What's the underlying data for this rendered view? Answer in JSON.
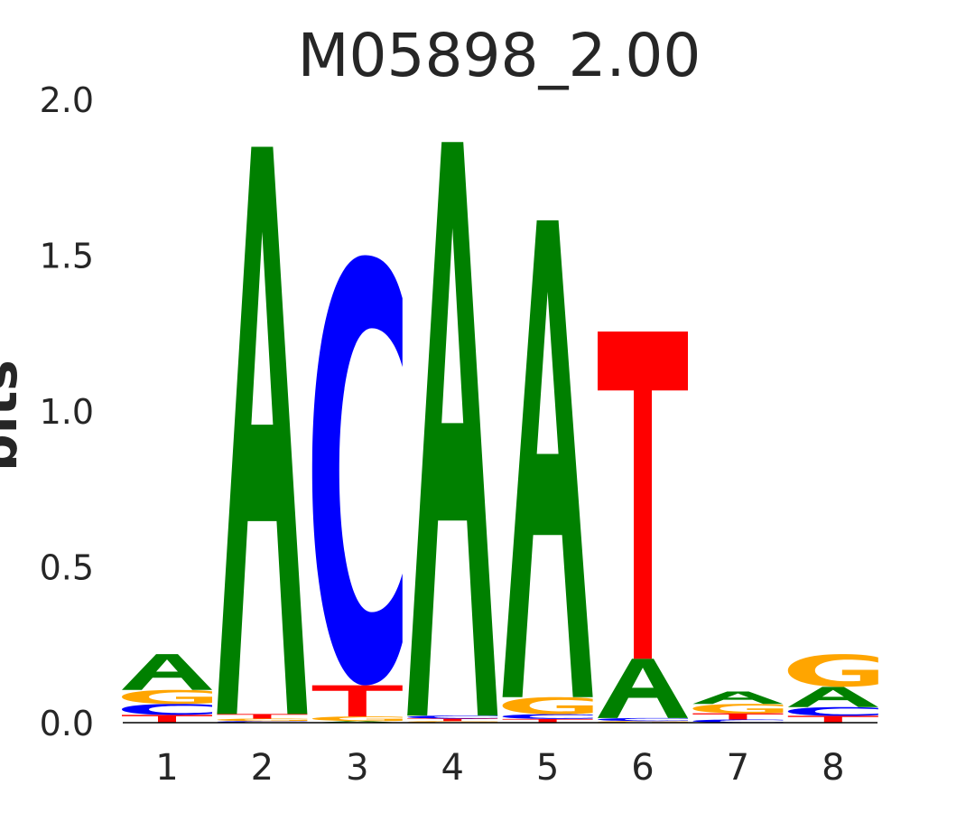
{
  "chart_data": {
    "type": "sequence-logo",
    "title": "M05898_2.00",
    "ylabel": "bits",
    "xlabel": "",
    "ylim": [
      0,
      2.0
    ],
    "yticks": [
      "0.0",
      "0.5",
      "1.0",
      "1.5",
      "2.0"
    ],
    "positions": [
      "1",
      "2",
      "3",
      "4",
      "5",
      "6",
      "7",
      "8"
    ],
    "colors": {
      "A": "#008000",
      "C": "#0000ff",
      "G": "#ffa500",
      "T": "#ff0000"
    },
    "stacks": [
      [
        {
          "base": "T",
          "bits": 0.025
        },
        {
          "base": "C",
          "bits": 0.035
        },
        {
          "base": "G",
          "bits": 0.045
        },
        {
          "base": "A",
          "bits": 0.115
        }
      ],
      [
        {
          "base": "C",
          "bits": 0.005
        },
        {
          "base": "G",
          "bits": 0.008
        },
        {
          "base": "T",
          "bits": 0.015
        },
        {
          "base": "A",
          "bits": 1.82
        }
      ],
      [
        {
          "base": "A",
          "bits": 0.005
        },
        {
          "base": "G",
          "bits": 0.015
        },
        {
          "base": "T",
          "bits": 0.1
        },
        {
          "base": "C",
          "bits": 1.38
        }
      ],
      [
        {
          "base": "G",
          "bits": 0.005
        },
        {
          "base": "T",
          "bits": 0.008
        },
        {
          "base": "C",
          "bits": 0.01
        },
        {
          "base": "A",
          "bits": 1.84
        }
      ],
      [
        {
          "base": "T",
          "bits": 0.012
        },
        {
          "base": "C",
          "bits": 0.015
        },
        {
          "base": "G",
          "bits": 0.055
        },
        {
          "base": "A",
          "bits": 1.53
        }
      ],
      [
        {
          "base": "G",
          "bits": 0.005
        },
        {
          "base": "C",
          "bits": 0.01
        },
        {
          "base": "A",
          "bits": 0.19
        },
        {
          "base": "T",
          "bits": 1.05
        }
      ],
      [
        {
          "base": "C",
          "bits": 0.01
        },
        {
          "base": "T",
          "bits": 0.02
        },
        {
          "base": "G",
          "bits": 0.03
        },
        {
          "base": "A",
          "bits": 0.04
        }
      ],
      [
        {
          "base": "T",
          "bits": 0.022
        },
        {
          "base": "C",
          "bits": 0.028
        },
        {
          "base": "A",
          "bits": 0.065
        },
        {
          "base": "G",
          "bits": 0.105
        }
      ]
    ]
  }
}
